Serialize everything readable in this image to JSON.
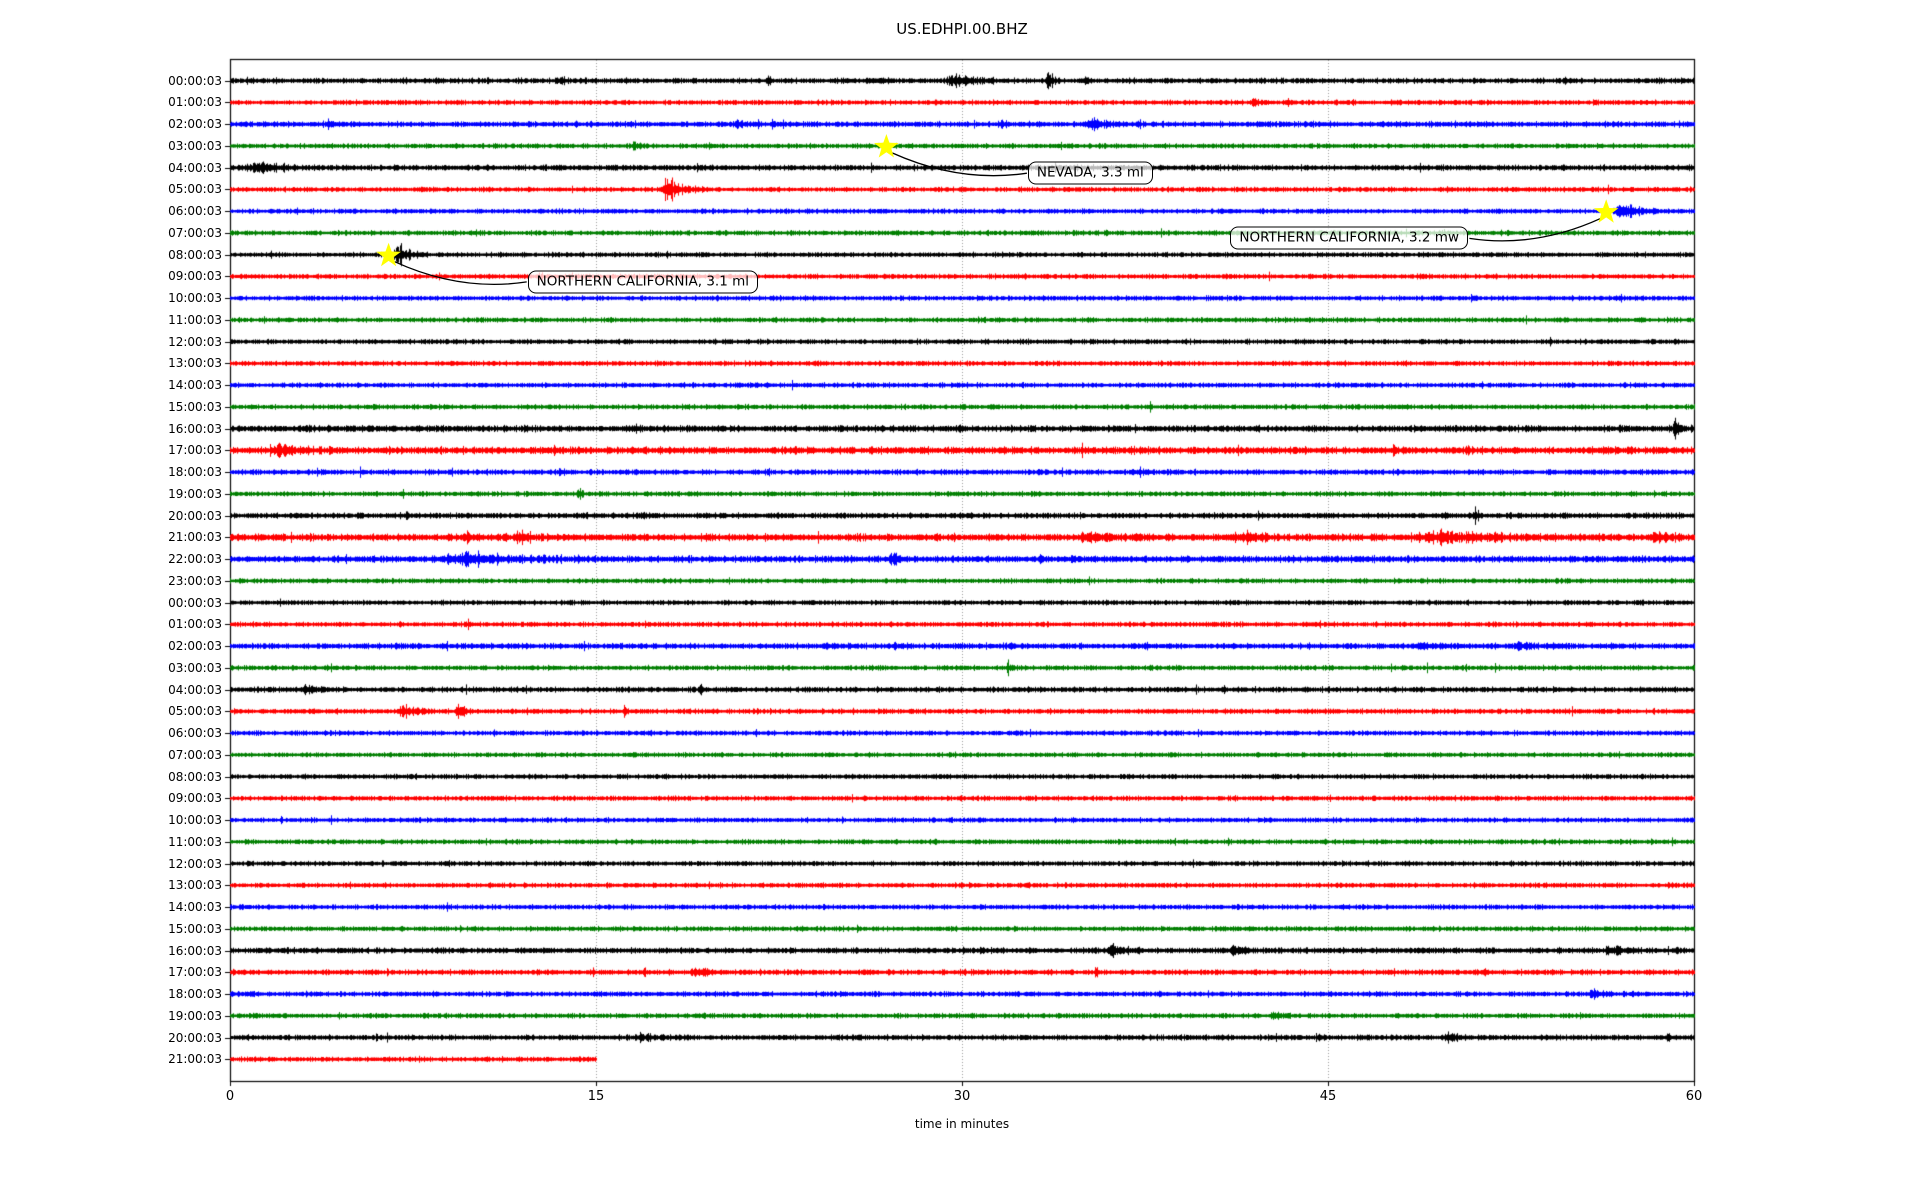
{
  "chart_data": {
    "type": "line",
    "subtype": "seismic-dayplot",
    "title": "US.EDHPI.00.BHZ",
    "xlabel": "time in minutes",
    "xlim": [
      0,
      60
    ],
    "x_ticks": [
      0,
      15,
      30,
      45,
      60
    ],
    "grid": "vertical dotted gridlines at 15, 30, 45",
    "grid_color": "#999999",
    "trace_color_cycle": [
      "#000000",
      "#ff0000",
      "#0000ff",
      "#007f00"
    ],
    "marker": {
      "shape": "star",
      "color": "#ffff00"
    },
    "rows": [
      {
        "label": "00:00:03",
        "color": "k",
        "duration_min": 60,
        "base_amp": 1.1,
        "events": [
          [
            13.5,
            0.5,
            4
          ],
          [
            22,
            0.4,
            3
          ],
          [
            26.5,
            0.6,
            3
          ],
          [
            29.3,
            2.6,
            5
          ],
          [
            33.4,
            0.8,
            6
          ],
          [
            34.9,
            0.5,
            4
          ],
          [
            54.6,
            0.5,
            3
          ]
        ]
      },
      {
        "label": "01:00:03",
        "color": "r",
        "duration_min": 60,
        "base_amp": 1.0,
        "events": [
          [
            41.8,
            1.0,
            2
          ],
          [
            43.3,
            0.3,
            4
          ]
        ]
      },
      {
        "label": "02:00:03",
        "color": "b",
        "duration_min": 60,
        "base_amp": 1.15,
        "events": [
          [
            3.9,
            0.8,
            3
          ],
          [
            20.6,
            1.0,
            3
          ],
          [
            22.1,
            0.5,
            3
          ],
          [
            31.4,
            0.8,
            2
          ],
          [
            35.1,
            1.4,
            5
          ]
        ]
      },
      {
        "label": "03:00:03",
        "color": "g",
        "duration_min": 60,
        "base_amp": 1.0,
        "events": [
          [
            16.4,
            0.9,
            3
          ],
          [
            19.6,
            0.5,
            2
          ],
          [
            26.8,
            0.7,
            2
          ]
        ]
      },
      {
        "label": "04:00:03",
        "color": "k",
        "duration_min": 60,
        "base_amp": 1.15,
        "events": [
          [
            0.4,
            4.0,
            3
          ],
          [
            19.1,
            0.3,
            4
          ]
        ]
      },
      {
        "label": "05:00:03",
        "color": "r",
        "duration_min": 60,
        "base_amp": 1.0,
        "events": [
          [
            17.5,
            2.2,
            8
          ]
        ]
      },
      {
        "label": "06:00:03",
        "color": "b",
        "duration_min": 60,
        "base_amp": 1.0,
        "events": [
          [
            56.6,
            2.4,
            7
          ]
        ]
      },
      {
        "label": "07:00:03",
        "color": "g",
        "duration_min": 60,
        "base_amp": 1.0,
        "events": []
      },
      {
        "label": "08:00:03",
        "color": "k",
        "duration_min": 60,
        "base_amp": 1.0,
        "events": [
          [
            6.6,
            1.6,
            7
          ]
        ]
      },
      {
        "label": "09:00:03",
        "color": "r",
        "duration_min": 60,
        "base_amp": 1.0,
        "events": []
      },
      {
        "label": "10:00:03",
        "color": "b",
        "duration_min": 60,
        "base_amp": 1.0,
        "events": []
      },
      {
        "label": "11:00:03",
        "color": "g",
        "duration_min": 60,
        "base_amp": 1.0,
        "events": []
      },
      {
        "label": "12:00:03",
        "color": "k",
        "duration_min": 60,
        "base_amp": 1.0,
        "events": []
      },
      {
        "label": "13:00:03",
        "color": "r",
        "duration_min": 60,
        "base_amp": 1.0,
        "events": []
      },
      {
        "label": "14:00:03",
        "color": "b",
        "duration_min": 60,
        "base_amp": 1.0,
        "events": []
      },
      {
        "label": "15:00:03",
        "color": "g",
        "duration_min": 60,
        "base_amp": 1.0,
        "events": []
      },
      {
        "label": "16:00:03",
        "color": "k",
        "duration_min": 60,
        "base_amp": 1.3,
        "events": [
          [
            24.9,
            0.4,
            2
          ],
          [
            29.8,
            0.5,
            2
          ],
          [
            59.1,
            0.6,
            9
          ]
        ]
      },
      {
        "label": "17:00:03",
        "color": "r",
        "duration_min": 60,
        "base_amp": 1.45,
        "events": [
          [
            1.6,
            2.8,
            3
          ],
          [
            13.2,
            0.5,
            2
          ],
          [
            36.8,
            0.5,
            2
          ],
          [
            41.2,
            0.4,
            2
          ],
          [
            47.6,
            0.5,
            3
          ],
          [
            50.6,
            0.4,
            3
          ],
          [
            56.1,
            0.4,
            2
          ]
        ]
      },
      {
        "label": "18:00:03",
        "color": "b",
        "duration_min": 60,
        "base_amp": 1.1,
        "events": [
          [
            13.4,
            0.6,
            2
          ],
          [
            37.2,
            0.5,
            2
          ]
        ]
      },
      {
        "label": "19:00:03",
        "color": "g",
        "duration_min": 60,
        "base_amp": 1.0,
        "events": [
          [
            14.2,
            0.5,
            3
          ]
        ]
      },
      {
        "label": "20:00:03",
        "color": "k",
        "duration_min": 60,
        "base_amp": 1.15,
        "events": [
          [
            7.1,
            0.5,
            2
          ],
          [
            16.6,
            1.4,
            2
          ],
          [
            50.9,
            0.5,
            5
          ]
        ]
      },
      {
        "label": "21:00:03",
        "color": "r",
        "duration_min": 60,
        "base_amp": 1.45,
        "events": [
          [
            9.6,
            0.6,
            5
          ],
          [
            11.6,
            1.4,
            5
          ],
          [
            34.6,
            3.4,
            3
          ],
          [
            41.1,
            2.2,
            3
          ],
          [
            48.1,
            8.8,
            3
          ],
          [
            58.1,
            1.8,
            4
          ]
        ]
      },
      {
        "label": "22:00:03",
        "color": "b",
        "duration_min": 60,
        "base_amp": 1.35,
        "events": [
          [
            8.5,
            6.0,
            4
          ],
          [
            26.9,
            1.2,
            3
          ],
          [
            33.1,
            0.5,
            2
          ]
        ]
      },
      {
        "label": "23:00:03",
        "color": "g",
        "duration_min": 60,
        "base_amp": 1.0,
        "events": []
      },
      {
        "label": "00:00:03",
        "color": "k",
        "duration_min": 60,
        "base_amp": 1.0,
        "events": []
      },
      {
        "label": "01:00:03",
        "color": "r",
        "duration_min": 60,
        "base_amp": 1.0,
        "events": [
          [
            9.7,
            0.3,
            3
          ]
        ]
      },
      {
        "label": "02:00:03",
        "color": "b",
        "duration_min": 60,
        "base_amp": 1.2,
        "events": [
          [
            24.1,
            1.4,
            2
          ],
          [
            27.1,
            0.6,
            2
          ],
          [
            31.9,
            0.4,
            3
          ],
          [
            37.4,
            0.5,
            2
          ],
          [
            48.2,
            2.8,
            2
          ],
          [
            52.6,
            1.8,
            2
          ]
        ]
      },
      {
        "label": "03:00:03",
        "color": "g",
        "duration_min": 60,
        "base_amp": 1.0,
        "events": [
          [
            31.8,
            0.25,
            8
          ]
        ]
      },
      {
        "label": "04:00:03",
        "color": "k",
        "duration_min": 60,
        "base_amp": 1.1,
        "events": [
          [
            2.9,
            1.8,
            3
          ],
          [
            19.2,
            0.4,
            5
          ],
          [
            40.6,
            0.4,
            2
          ]
        ]
      },
      {
        "label": "05:00:03",
        "color": "r",
        "duration_min": 60,
        "base_amp": 1.05,
        "events": [
          [
            6.8,
            1.6,
            5
          ],
          [
            9.2,
            0.8,
            7
          ],
          [
            16.1,
            0.3,
            6
          ]
        ]
      },
      {
        "label": "06:00:03",
        "color": "b",
        "duration_min": 60,
        "base_amp": 1.0,
        "events": []
      },
      {
        "label": "07:00:03",
        "color": "g",
        "duration_min": 60,
        "base_amp": 0.95,
        "events": []
      },
      {
        "label": "08:00:03",
        "color": "k",
        "duration_min": 60,
        "base_amp": 1.0,
        "events": []
      },
      {
        "label": "09:00:03",
        "color": "r",
        "duration_min": 60,
        "base_amp": 1.0,
        "events": []
      },
      {
        "label": "10:00:03",
        "color": "b",
        "duration_min": 60,
        "base_amp": 1.0,
        "events": []
      },
      {
        "label": "11:00:03",
        "color": "g",
        "duration_min": 60,
        "base_amp": 1.0,
        "events": []
      },
      {
        "label": "12:00:03",
        "color": "k",
        "duration_min": 60,
        "base_amp": 1.0,
        "events": []
      },
      {
        "label": "13:00:03",
        "color": "r",
        "duration_min": 60,
        "base_amp": 1.0,
        "events": []
      },
      {
        "label": "14:00:03",
        "color": "b",
        "duration_min": 60,
        "base_amp": 1.0,
        "events": []
      },
      {
        "label": "15:00:03",
        "color": "g",
        "duration_min": 60,
        "base_amp": 1.0,
        "events": []
      },
      {
        "label": "16:00:03",
        "color": "k",
        "duration_min": 60,
        "base_amp": 1.2,
        "events": [
          [
            35.8,
            2.0,
            3
          ],
          [
            40.9,
            1.2,
            5
          ],
          [
            56.3,
            1.4,
            3
          ]
        ]
      },
      {
        "label": "17:00:03",
        "color": "r",
        "duration_min": 60,
        "base_amp": 1.1,
        "events": [
          [
            16.9,
            0.4,
            2
          ],
          [
            18.8,
            1.8,
            3
          ],
          [
            25.9,
            0.4,
            2
          ],
          [
            35.4,
            0.4,
            4
          ],
          [
            51.3,
            0.5,
            4
          ]
        ]
      },
      {
        "label": "18:00:03",
        "color": "b",
        "duration_min": 60,
        "base_amp": 1.05,
        "events": [
          [
            14.9,
            0.5,
            2
          ],
          [
            55.6,
            1.6,
            3
          ]
        ]
      },
      {
        "label": "19:00:03",
        "color": "g",
        "duration_min": 60,
        "base_amp": 1.0,
        "events": [
          [
            42.6,
            1.0,
            3
          ]
        ]
      },
      {
        "label": "20:00:03",
        "color": "k",
        "duration_min": 60,
        "base_amp": 1.1,
        "events": [
          [
            16.4,
            2.4,
            2
          ],
          [
            44.6,
            0.5,
            2
          ],
          [
            49.7,
            1.4,
            3
          ],
          [
            58.8,
            0.6,
            3
          ]
        ]
      },
      {
        "label": "21:00:03",
        "color": "r",
        "duration_min": 15,
        "base_amp": 1.0,
        "events": []
      }
    ],
    "annotations": [
      {
        "label": "NEVADA, 3.3 ml",
        "row": 3,
        "t_min": 26.9,
        "box_left_t": 32.7,
        "box_row": 4.25,
        "attach": "left"
      },
      {
        "label": "NORTHERN CALIFORNIA, 3.2 mw",
        "row": 6,
        "t_min": 56.4,
        "box_left_t": 41.0,
        "box_row": 7.25,
        "attach": "right"
      },
      {
        "label": "NORTHERN CALIFORNIA, 3.1 ml",
        "row": 8,
        "t_min": 6.5,
        "box_left_t": 12.2,
        "box_row": 9.25,
        "attach": "left"
      }
    ]
  }
}
